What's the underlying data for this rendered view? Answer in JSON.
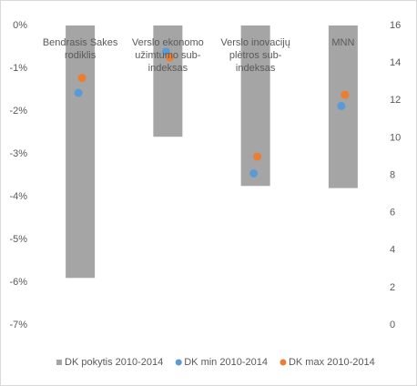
{
  "chart_data": {
    "type": "bar",
    "categories": [
      "Bendrasis Sakes rodiklis",
      "Verslo ekonomo užimtumo sub-indeksas",
      "Verslo inovacijų plėtros sub-indeksas",
      "MNN"
    ],
    "series": [
      {
        "name": "DK pokytis 2010-2014",
        "color": "#a5a5a5",
        "values": [
          -5.9,
          -2.6,
          -3.75,
          -3.8
        ]
      },
      {
        "name": "DK min 2010-2014",
        "color": "#5b9bd5",
        "axis": "y2",
        "values": [
          12.4,
          14.6,
          8.1,
          11.7
        ]
      },
      {
        "name": "DK max 2010-2014",
        "color": "#ed7d31",
        "axis": "y2",
        "values": [
          13.2,
          14.3,
          9.0,
          12.3
        ]
      }
    ],
    "ylim": [
      -7,
      0
    ],
    "yticks": [
      {
        "value": 0,
        "label": "0%"
      },
      {
        "value": -1,
        "label": "-1%"
      },
      {
        "value": -2,
        "label": "-2%"
      },
      {
        "value": -3,
        "label": "-3%"
      },
      {
        "value": -4,
        "label": "-4%"
      },
      {
        "value": -5,
        "label": "-5%"
      },
      {
        "value": -6,
        "label": "-6%"
      },
      {
        "value": -7,
        "label": "-7%"
      }
    ],
    "y2lim": [
      0,
      16
    ],
    "y2ticks": [
      0,
      2,
      4,
      6,
      8,
      10,
      12,
      14,
      16
    ],
    "legend": "bottom"
  }
}
